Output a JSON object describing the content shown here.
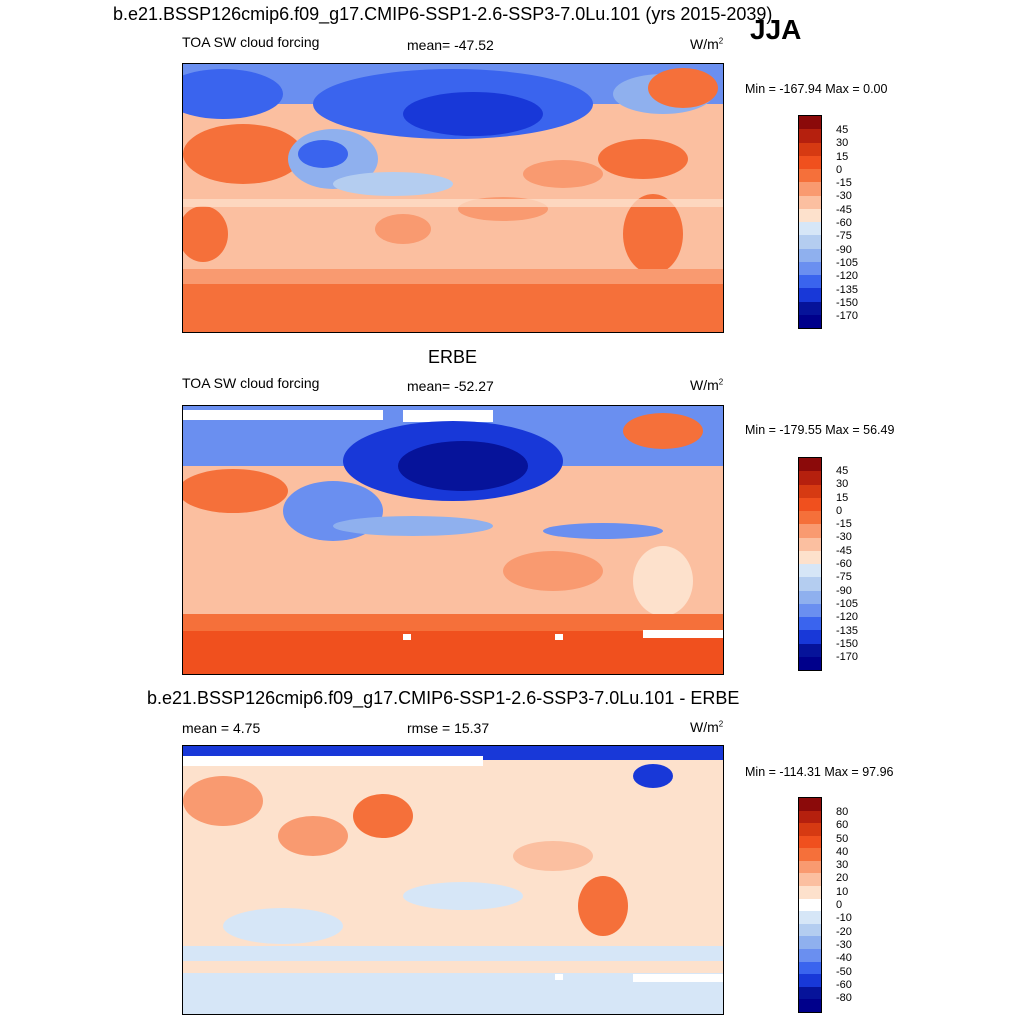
{
  "header": {
    "main_title": "b.e21.BSSP126cmip6.f09_g17.CMIP6-SSP1-2.6-SSP3-7.0Lu.101 (yrs 2015-2039)",
    "season": "JJA"
  },
  "panels": [
    {
      "id": "model",
      "left_label": "TOA SW cloud forcing",
      "center_label": "mean= -47.52",
      "units": "W/m",
      "units_sup": "2",
      "minmax": "Min = -167.94 Max =   0.00",
      "levels": [
        "45",
        "30",
        "15",
        "0",
        "-15",
        "-30",
        "-45",
        "-60",
        "-75",
        "-90",
        "-105",
        "-120",
        "-135",
        "-150",
        "-170"
      ]
    },
    {
      "id": "obs",
      "title": "ERBE",
      "left_label": "TOA SW cloud forcing",
      "center_label": "mean= -52.27",
      "units": "W/m",
      "units_sup": "2",
      "minmax": "Min = -179.55 Max =  56.49",
      "levels": [
        "45",
        "30",
        "15",
        "0",
        "-15",
        "-30",
        "-45",
        "-60",
        "-75",
        "-90",
        "-105",
        "-120",
        "-135",
        "-150",
        "-170"
      ]
    },
    {
      "id": "diff",
      "title": "b.e21.BSSP126cmip6.f09_g17.CMIP6-SSP1-2.6-SSP3-7.0Lu.101 - ERBE",
      "left_label": "mean =   4.75",
      "center_label": "rmse =  15.37",
      "units": "W/m",
      "units_sup": "2",
      "minmax": "Min = -114.31 Max =  97.96",
      "levels": [
        "80",
        "60",
        "50",
        "40",
        "30",
        "20",
        "10",
        "0",
        "-10",
        "-20",
        "-30",
        "-40",
        "-50",
        "-60",
        "-80"
      ]
    }
  ],
  "colors": {
    "colorbar_cf": [
      "#8b0a0a",
      "#b5200e",
      "#d63a12",
      "#f0501e",
      "#f5703a",
      "#f99a70",
      "#fbbfa0",
      "#fde1cc",
      "#d6e6f7",
      "#b4cdf0",
      "#8fb0ee",
      "#6a8ff0",
      "#3a64ee",
      "#1838d8",
      "#06139a",
      "#00008b"
    ],
    "colorbar_diff": [
      "#8b0a0a",
      "#b5200e",
      "#d63a12",
      "#f0501e",
      "#f5703a",
      "#f99a70",
      "#fbbfa0",
      "#fde1cc",
      "#ffffff",
      "#d6e6f7",
      "#b4cdf0",
      "#8fb0ee",
      "#6a8ff0",
      "#3a64ee",
      "#1838d8",
      "#06139a",
      "#00008b"
    ]
  }
}
